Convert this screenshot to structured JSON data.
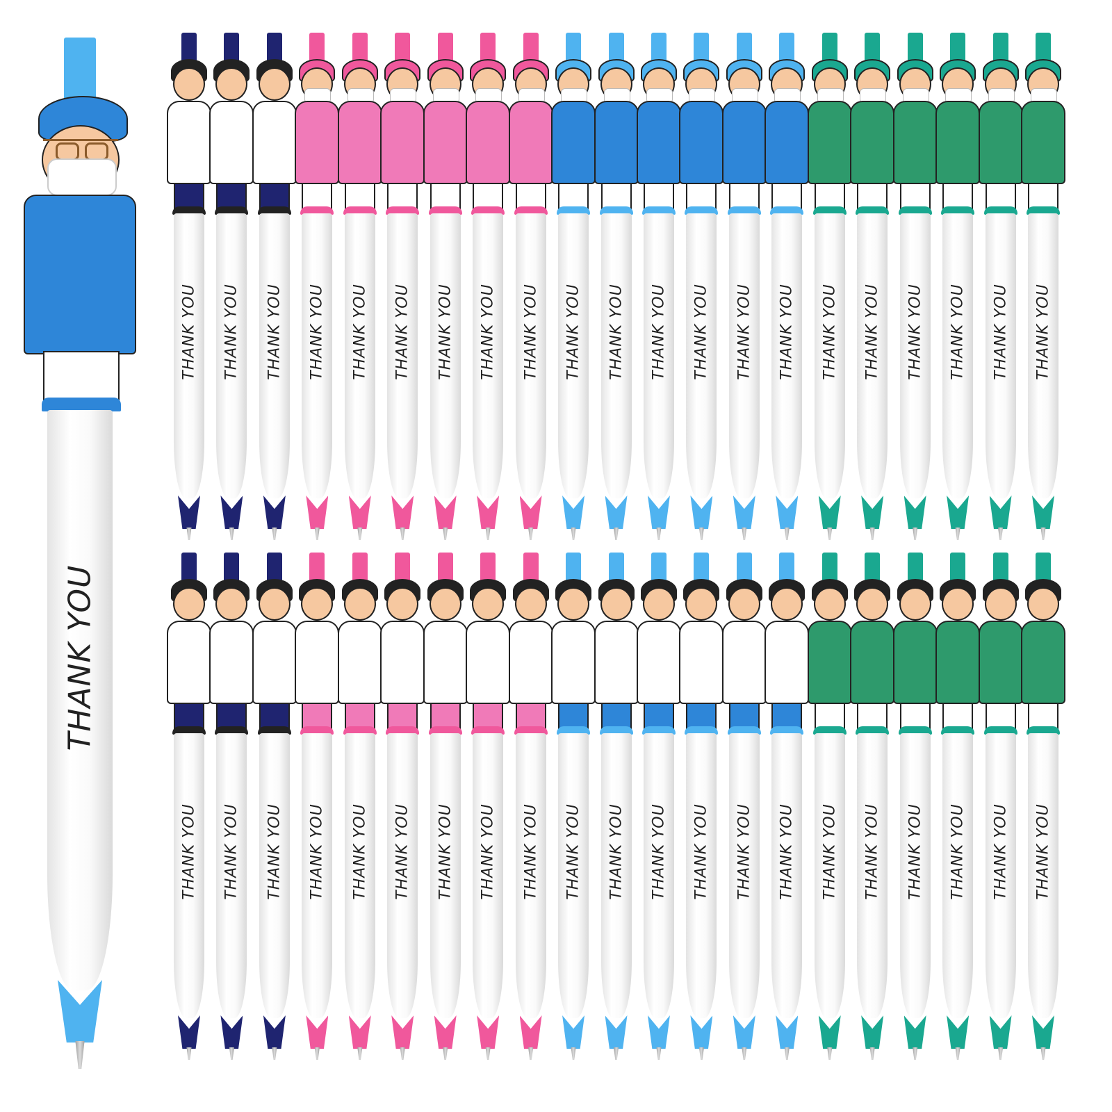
{
  "pen_text": "THANK YOU",
  "colors": {
    "navy": "#1f2470",
    "pink": "#f0589c",
    "blue": "#2e86d8",
    "light_blue": "#4fb3f0",
    "green": "#2e9a6c",
    "teal": "#1aa890"
  },
  "hero_pen": {
    "text": "THANK YOU",
    "figure": "surgeon",
    "body_color": "#2e86d8",
    "accent": "#4fb3f0"
  },
  "rows": [
    {
      "groups": [
        {
          "figure": "doctor-white-coat",
          "body": "#ffffff",
          "legs": "#1f2470",
          "accent": "#1f2470",
          "count": 3
        },
        {
          "figure": "nurse-scrubs",
          "body": "#f07ab8",
          "legs": "#ffffff",
          "accent": "#f0589c",
          "count": 6
        },
        {
          "figure": "surgeon-masked",
          "body": "#2e86d8",
          "legs": "#ffffff",
          "accent": "#4fb3f0",
          "count": 6
        },
        {
          "figure": "surgeon-masked",
          "body": "#2e9a6c",
          "legs": "#ffffff",
          "accent": "#1aa890",
          "count": 6
        }
      ]
    },
    {
      "groups": [
        {
          "figure": "doctor-white-coat",
          "body": "#ffffff",
          "legs": "#1f2470",
          "accent": "#1f2470",
          "count": 3
        },
        {
          "figure": "female-doctor",
          "body": "#ffffff",
          "legs": "#f07ab8",
          "accent": "#f0589c",
          "count": 6
        },
        {
          "figure": "female-doctor",
          "body": "#ffffff",
          "legs": "#2e86d8",
          "accent": "#4fb3f0",
          "count": 6
        },
        {
          "figure": "male-nurse",
          "body": "#2e9a6c",
          "legs": "#ffffff",
          "accent": "#1aa890",
          "count": 6
        }
      ]
    }
  ]
}
